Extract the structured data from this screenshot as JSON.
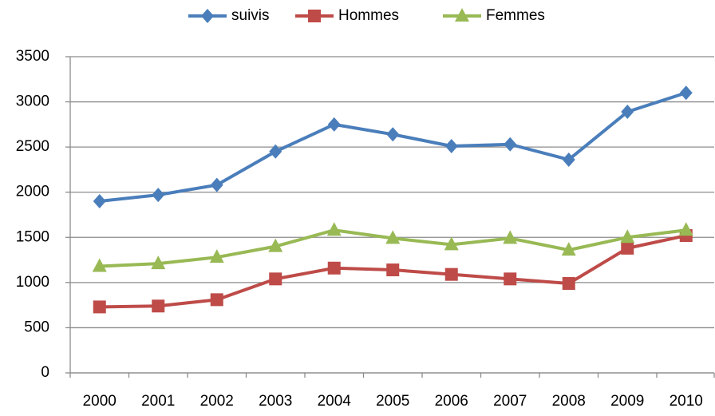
{
  "chart_data": {
    "type": "line",
    "categories": [
      "2000",
      "2001",
      "2002",
      "2003",
      "2004",
      "2005",
      "2006",
      "2007",
      "2008",
      "2009",
      "2010"
    ],
    "series": [
      {
        "name": "suivis",
        "color": "#4a7ebb",
        "marker": "diamond",
        "values": [
          1900,
          1970,
          2080,
          2450,
          2750,
          2640,
          2510,
          2530,
          2360,
          2890,
          3100
        ]
      },
      {
        "name": "Hommes",
        "color": "#be4b48",
        "marker": "square",
        "values": [
          730,
          740,
          810,
          1040,
          1160,
          1140,
          1090,
          1040,
          990,
          1380,
          1520
        ]
      },
      {
        "name": "Femmes",
        "color": "#98b954",
        "marker": "triangle",
        "values": [
          1180,
          1210,
          1280,
          1400,
          1580,
          1490,
          1420,
          1490,
          1360,
          1500,
          1580
        ]
      }
    ],
    "ylim": [
      0,
      3500
    ],
    "yticks": [
      0,
      500,
      1000,
      1500,
      2000,
      2500,
      3000,
      3500
    ],
    "grid": true,
    "legend": "top"
  }
}
